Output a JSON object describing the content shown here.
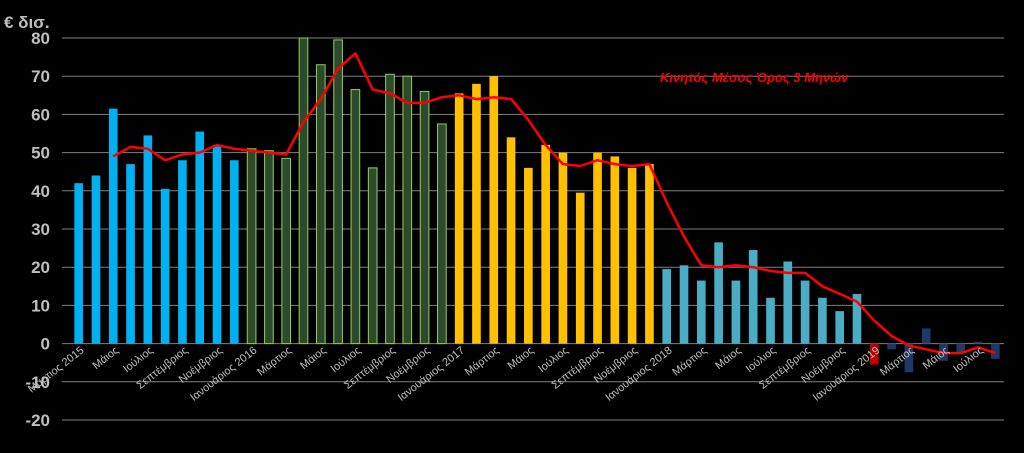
{
  "chart_data": {
    "type": "bar",
    "ylabel": "€ δισ.",
    "ylim": [
      -20,
      80
    ],
    "y_ticks": [
      80,
      70,
      60,
      50,
      40,
      30,
      20,
      10,
      0,
      -10,
      -20
    ],
    "grid": true,
    "x_labels": [
      "Μάρτιος 2015",
      "Μάιος",
      "Ιούλιος",
      "Σεπτέμβριος",
      "Νοέμβριος",
      "Ιανουάριος 2016",
      "Μάρτιος",
      "Μάιος",
      "Ιούλιος",
      "Σεπτέμβριος",
      "Νοέμβριος",
      "Ιανουάριος 2017",
      "Μάρτιος",
      "Μάιος",
      "Ιούλιος",
      "Σεπτέμβριος",
      "Νοέμβριος",
      "Ιανουάριος 2018",
      "Μάρτιος",
      "Μάιος",
      "Ιούλιος",
      "Σεπτέμβριος",
      "Νοέμβριος",
      "Ιανουάριος 2019",
      "Μάρτιος",
      "Μάιος",
      "Ιούλιος"
    ],
    "bar_colors": [
      "#00b0f0",
      "#00b0f0",
      "#00b0f0",
      "#00b0f0",
      "#00b0f0",
      "#00b0f0",
      "#00b0f0",
      "#00b0f0",
      "#00b0f0",
      "#00b0f0",
      "#2e4a2e",
      "#2e4a2e",
      "#2e4a2e",
      "#2e4a2e",
      "#2e4a2e",
      "#2e4a2e",
      "#2e4a2e",
      "#2e4a2e",
      "#2e4a2e",
      "#2e4a2e",
      "#2e4a2e",
      "#2e4a2e",
      "#ffc000",
      "#ffc000",
      "#ffc000",
      "#ffc000",
      "#ffc000",
      "#ffc000",
      "#ffc000",
      "#ffc000",
      "#ffc000",
      "#ffc000",
      "#ffc000",
      "#ffc000",
      "#4bacc6",
      "#4bacc6",
      "#4bacc6",
      "#4bacc6",
      "#4bacc6",
      "#4bacc6",
      "#4bacc6",
      "#4bacc6",
      "#4bacc6",
      "#4bacc6",
      "#4bacc6",
      "#4bacc6",
      "#c00000",
      "#1f3864",
      "#1f3864",
      "#1f3864",
      "#1f3864",
      "#1f3864",
      "#1f3864",
      "#1f3864"
    ],
    "bar_strokes": [
      "",
      "",
      "",
      "",
      "",
      "",
      "",
      "",
      "",
      "",
      "#92d050",
      "#92d050",
      "#92d050",
      "#92d050",
      "#92d050",
      "#92d050",
      "#92d050",
      "#92d050",
      "#92d050",
      "#92d050",
      "#92d050",
      "#92d050",
      "",
      "",
      "",
      "",
      "",
      "",
      "",
      "",
      "",
      "",
      "",
      "",
      "",
      "",
      "",
      "",
      "",
      "",
      "",
      "",
      "",
      "",
      "",
      "",
      "",
      "",
      "",
      "",
      "",
      "",
      "",
      ""
    ],
    "values": [
      42,
      44,
      61.5,
      47,
      54.5,
      40.5,
      48,
      55.5,
      52,
      48,
      51,
      50.5,
      48.5,
      80,
      73,
      79.5,
      66.5,
      46,
      70.5,
      70,
      66,
      57.5,
      65.5,
      68,
      70,
      54,
      46,
      52,
      50,
      39.5,
      50,
      49,
      46,
      47,
      19.5,
      20.5,
      16.5,
      26.5,
      16.5,
      24.5,
      12,
      21.5,
      16.5,
      12,
      8.5,
      13,
      -5.5,
      -1.5,
      -7.5,
      4,
      -4.5,
      -2.5,
      0.5,
      -4
    ],
    "series": [
      {
        "name": "Κινητός Μέσος Όρος 3 Μηνών",
        "type": "line",
        "color": "#ff0000",
        "values": [
          null,
          null,
          49,
          51.5,
          51,
          48,
          49.5,
          50,
          52,
          51,
          50.5,
          50,
          49.5,
          58,
          64,
          72,
          76,
          66.5,
          65.5,
          63,
          63,
          64.5,
          65,
          64,
          64.5,
          64,
          58.5,
          52,
          47,
          46.5,
          48,
          47,
          46.5,
          47,
          37,
          28,
          20.5,
          20,
          20.5,
          20,
          19,
          18.5,
          18.5,
          15,
          13,
          11,
          6,
          2,
          -0.5,
          -1.5,
          -2.5,
          -2.5,
          -1,
          -2.5
        ]
      }
    ],
    "legend_placement": "top-right"
  }
}
